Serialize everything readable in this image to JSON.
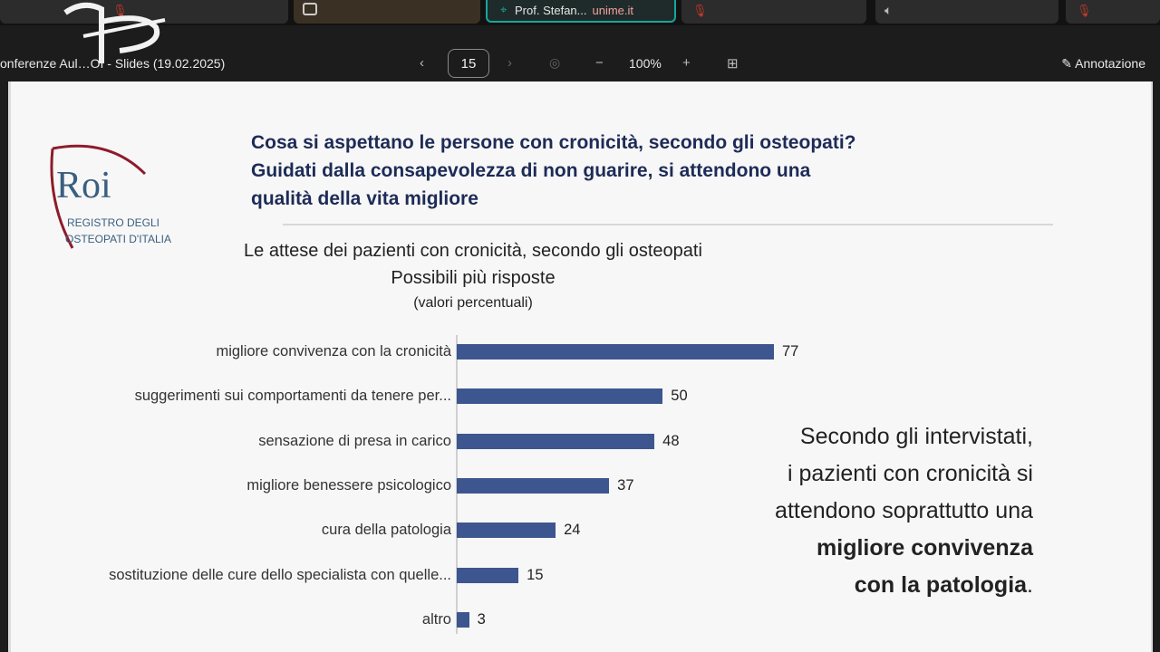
{
  "participants": {
    "active_speaker_name": "Prof. Stefan...",
    "active_speaker_domain": "unime.it"
  },
  "toolbar": {
    "doc_title": "onferenze Aul…OI - Slides (19.02.2025)",
    "prev_icon": "chevron-left-icon",
    "page_number": "15",
    "next_icon": "chevron-right-icon",
    "zoom_out": "−",
    "zoom_level": "100%",
    "zoom_in": "+",
    "grid_icon": "grid-icon",
    "annotation_label": "Annotazione"
  },
  "slide": {
    "logo_main": "Roi",
    "logo_sub1": "REGISTRO DEGLI",
    "logo_sub2": "OSTEOPATI D'ITALIA",
    "headline": [
      "Cosa si aspettano le persone con cronicità, secondo gli osteopati?",
      "Guidati dalla consapevolezza di non guarire, si attendono una",
      "qualità della vita migliore"
    ],
    "note_lines": [
      "Secondo gli intervistati,",
      "i pazienti con cronicità si",
      "attendono soprattutto una"
    ],
    "note_bold": [
      "migliore convivenza",
      "con la patologia"
    ],
    "note_end": "."
  },
  "chart_data": {
    "type": "bar",
    "orientation": "horizontal",
    "title": "Le attese dei pazienti con cronicità, secondo gli osteopati",
    "subtitle": "Possibili più risposte",
    "unit_note": "(valori percentuali)",
    "categories": [
      "migliore convivenza con la cronicità",
      "suggerimenti sui comportamenti da tenere per...",
      "sensazione di presa in carico",
      "migliore benessere psicologico",
      "cura della patologia",
      "sostituzione delle cure dello specialista con quelle...",
      "altro"
    ],
    "values": [
      77,
      50,
      48,
      37,
      24,
      15,
      3
    ],
    "xlim": [
      0,
      100
    ],
    "bar_color": "#3e5690",
    "grid": false,
    "legend": false
  }
}
